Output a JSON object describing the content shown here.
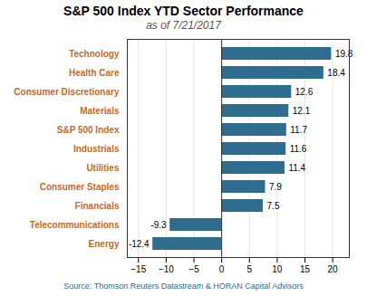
{
  "chart_data": {
    "type": "bar",
    "orientation": "horizontal",
    "title": "S&P 500 Index YTD Sector Performance",
    "subtitle": "as of 7/21/2017",
    "source": "Source: Thomson Reuters Datastream & HORAN Capital Advisors",
    "categories": [
      "Energy",
      "Telecommunications",
      "Financials",
      "Consumer Staples",
      "Utilities",
      "Industrials",
      "S&P 500 Index",
      "Materials",
      "Consumer Discretionary",
      "Health Care",
      "Technology"
    ],
    "values": [
      -12.4,
      -9.3,
      7.5,
      7.9,
      11.4,
      11.6,
      11.7,
      12.1,
      12.6,
      18.4,
      19.8
    ],
    "color": "#2e6d8e",
    "xlim": [
      -17,
      23
    ],
    "xticks": [
      -15,
      -10,
      -5,
      0,
      5,
      10,
      15,
      20
    ],
    "grid": true,
    "data_labels": true
  }
}
